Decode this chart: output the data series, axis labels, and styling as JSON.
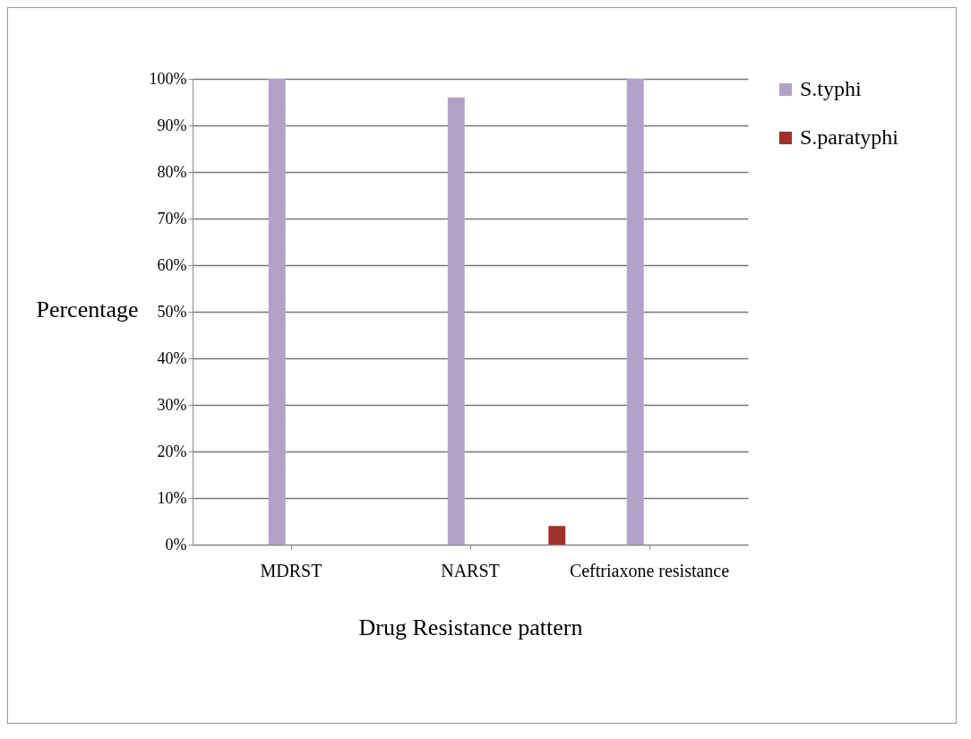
{
  "chart_data": {
    "type": "bar",
    "xlabel": "Drug Resistance pattern",
    "ylabel": "Percentage",
    "categories": [
      "MDRST",
      "NARST",
      "Ceftriaxone resistance"
    ],
    "series": [
      {
        "name": "S.typhi",
        "color": "#b3a2c7",
        "values": [
          100,
          96,
          100
        ]
      },
      {
        "name": "S.paratyphi",
        "color": "#a0302a",
        "values": [
          0,
          4,
          0
        ]
      }
    ],
    "ylim": [
      0,
      100
    ],
    "yticks": [
      {
        "value": 0,
        "label": "0%"
      },
      {
        "value": 10,
        "label": "10%"
      },
      {
        "value": 20,
        "label": "20%"
      },
      {
        "value": 30,
        "label": "30%"
      },
      {
        "value": 40,
        "label": "40%"
      },
      {
        "value": 50,
        "label": "50%"
      },
      {
        "value": 60,
        "label": "60%"
      },
      {
        "value": 70,
        "label": "70%"
      },
      {
        "value": 80,
        "label": "80%"
      },
      {
        "value": 90,
        "label": "90%"
      },
      {
        "value": 100,
        "label": "100%"
      }
    ],
    "grid": "y",
    "legend": "right"
  }
}
